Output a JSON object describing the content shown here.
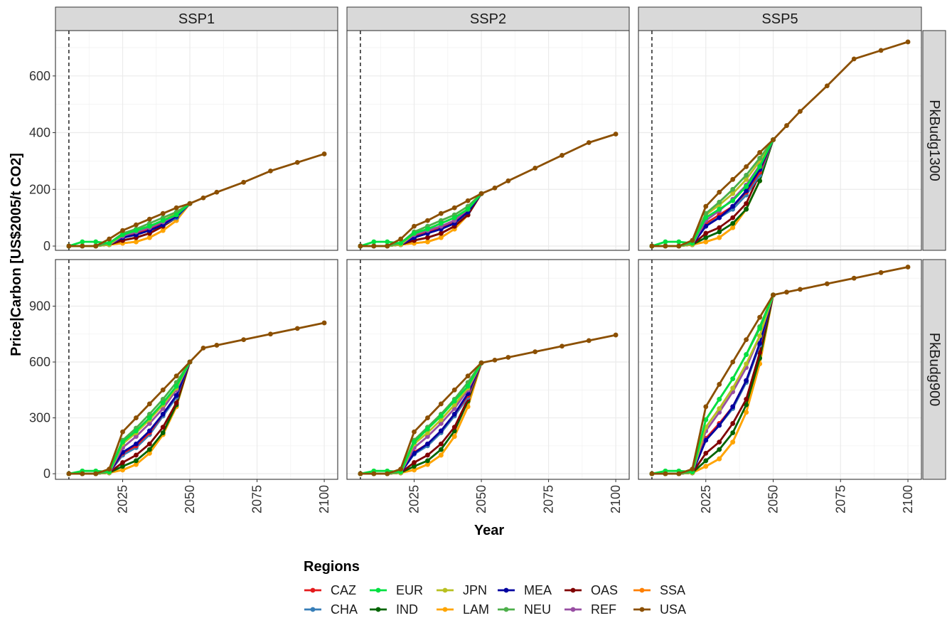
{
  "chart_data": {
    "type": "line",
    "facet_rows": [
      "PkBudg1300",
      "PkBudg900"
    ],
    "facet_cols": [
      "SSP1",
      "SSP2",
      "SSP5"
    ],
    "xlabel": "Year",
    "ylabel": "Price|Carbon [US$2005/t CO2]",
    "xlim": [
      2000,
      2105
    ],
    "x_ticks": [
      2025,
      2050,
      2075,
      2100
    ],
    "y_ticks": {
      "PkBudg1300": [
        0,
        200,
        400,
        600
      ],
      "PkBudg900": [
        0,
        300,
        600,
        900
      ]
    },
    "ylim": {
      "PkBudg1300": [
        -15,
        760
      ],
      "PkBudg900": [
        -30,
        1150
      ]
    },
    "vline_x": 2005,
    "legend": {
      "title": "Regions",
      "position": "bottom",
      "items": [
        {
          "name": "CAZ",
          "color": "#e41a1c"
        },
        {
          "name": "CHA",
          "color": "#377eb8"
        },
        {
          "name": "EUR",
          "color": "#00e040"
        },
        {
          "name": "IND",
          "color": "#006400"
        },
        {
          "name": "JPN",
          "color": "#b8c020"
        },
        {
          "name": "LAM",
          "color": "#ffa500"
        },
        {
          "name": "MEA",
          "color": "#0000a0"
        },
        {
          "name": "NEU",
          "color": "#4daf4a"
        },
        {
          "name": "OAS",
          "color": "#800000"
        },
        {
          "name": "REF",
          "color": "#984ea3"
        },
        {
          "name": "SSA",
          "color": "#ff7f00"
        },
        {
          "name": "USA",
          "color": "#8b4f00"
        }
      ]
    },
    "x_years": [
      2005,
      2010,
      2015,
      2020,
      2025,
      2030,
      2035,
      2040,
      2045,
      2050
    ],
    "x_long": [
      2050,
      2055,
      2060,
      2070,
      2080,
      2090,
      2100
    ],
    "panels": [
      {
        "row": "PkBudg1300",
        "col": "SSP1",
        "shared_tail": [
          150,
          170,
          190,
          225,
          265,
          295,
          325
        ],
        "series": {
          "CAZ": [
            0,
            0,
            0,
            5,
            30,
            45,
            60,
            80,
            110,
            150
          ],
          "CHA": [
            0,
            0,
            0,
            5,
            30,
            40,
            55,
            75,
            100,
            150
          ],
          "EUR": [
            0,
            15,
            15,
            10,
            40,
            55,
            70,
            90,
            110,
            150
          ],
          "IND": [
            0,
            0,
            0,
            5,
            20,
            30,
            45,
            70,
            100,
            150
          ],
          "JPN": [
            0,
            0,
            0,
            5,
            40,
            55,
            70,
            90,
            115,
            150
          ],
          "LAM": [
            0,
            0,
            0,
            5,
            10,
            15,
            30,
            55,
            90,
            150
          ],
          "MEA": [
            0,
            0,
            0,
            5,
            30,
            40,
            55,
            75,
            105,
            150
          ],
          "NEU": [
            0,
            0,
            0,
            10,
            45,
            60,
            80,
            100,
            120,
            150
          ],
          "OAS": [
            0,
            0,
            0,
            5,
            20,
            30,
            45,
            70,
            100,
            150
          ],
          "REF": [
            0,
            0,
            0,
            5,
            35,
            50,
            65,
            85,
            110,
            150
          ],
          "SSA": [
            0,
            0,
            0,
            5,
            10,
            15,
            30,
            55,
            90,
            150
          ],
          "USA": [
            0,
            0,
            0,
            25,
            55,
            75,
            95,
            115,
            135,
            150
          ]
        }
      },
      {
        "row": "PkBudg1300",
        "col": "SSP2",
        "shared_tail": [
          185,
          205,
          230,
          275,
          320,
          365,
          395
        ],
        "series": {
          "CAZ": [
            0,
            0,
            0,
            5,
            35,
            50,
            65,
            85,
            125,
            185
          ],
          "CHA": [
            0,
            0,
            0,
            5,
            30,
            45,
            60,
            80,
            120,
            185
          ],
          "EUR": [
            0,
            15,
            15,
            10,
            45,
            60,
            80,
            100,
            130,
            185
          ],
          "IND": [
            0,
            0,
            0,
            5,
            20,
            30,
            45,
            70,
            110,
            185
          ],
          "JPN": [
            0,
            0,
            0,
            5,
            45,
            60,
            80,
            100,
            130,
            185
          ],
          "LAM": [
            0,
            0,
            0,
            5,
            10,
            15,
            30,
            60,
            110,
            185
          ],
          "MEA": [
            0,
            0,
            0,
            5,
            30,
            45,
            60,
            80,
            120,
            185
          ],
          "NEU": [
            0,
            0,
            0,
            10,
            50,
            70,
            90,
            110,
            140,
            185
          ],
          "OAS": [
            0,
            0,
            0,
            5,
            20,
            30,
            45,
            70,
            110,
            185
          ],
          "REF": [
            0,
            0,
            0,
            5,
            40,
            55,
            70,
            90,
            130,
            185
          ],
          "SSA": [
            0,
            0,
            0,
            5,
            10,
            15,
            30,
            60,
            110,
            185
          ],
          "USA": [
            0,
            0,
            0,
            25,
            70,
            90,
            115,
            135,
            160,
            185
          ]
        }
      },
      {
        "row": "PkBudg1300",
        "col": "SSP5",
        "shared_tail": [
          375,
          425,
          475,
          565,
          660,
          690,
          720
        ],
        "series": {
          "CAZ": [
            0,
            0,
            0,
            5,
            80,
            110,
            140,
            190,
            260,
            375
          ],
          "CHA": [
            0,
            0,
            0,
            5,
            75,
            100,
            130,
            180,
            250,
            375
          ],
          "EUR": [
            0,
            15,
            15,
            10,
            100,
            130,
            160,
            210,
            280,
            375
          ],
          "IND": [
            0,
            0,
            0,
            5,
            30,
            50,
            80,
            130,
            230,
            375
          ],
          "JPN": [
            0,
            0,
            0,
            5,
            110,
            145,
            185,
            235,
            300,
            375
          ],
          "LAM": [
            0,
            0,
            0,
            5,
            15,
            30,
            65,
            130,
            230,
            375
          ],
          "MEA": [
            0,
            0,
            0,
            5,
            70,
            100,
            140,
            195,
            270,
            375
          ],
          "NEU": [
            0,
            0,
            0,
            10,
            115,
            155,
            200,
            250,
            310,
            375
          ],
          "OAS": [
            0,
            0,
            0,
            5,
            45,
            65,
            100,
            150,
            255,
            375
          ],
          "REF": [
            0,
            0,
            0,
            5,
            90,
            125,
            165,
            215,
            285,
            375
          ],
          "SSA": [
            0,
            0,
            0,
            5,
            15,
            30,
            65,
            130,
            230,
            375
          ],
          "USA": [
            0,
            0,
            0,
            20,
            140,
            190,
            235,
            280,
            330,
            375
          ]
        }
      },
      {
        "row": "PkBudg900",
        "col": "SSP1",
        "shared_tail": [
          600,
          675,
          690,
          720,
          750,
          780,
          810
        ],
        "series": {
          "CAZ": [
            0,
            0,
            0,
            5,
            110,
            150,
            220,
            320,
            420,
            600
          ],
          "CHA": [
            0,
            0,
            0,
            5,
            100,
            140,
            210,
            310,
            410,
            600
          ],
          "EUR": [
            0,
            15,
            15,
            10,
            170,
            230,
            300,
            380,
            470,
            600
          ],
          "IND": [
            0,
            0,
            0,
            5,
            40,
            70,
            130,
            220,
            370,
            600
          ],
          "JPN": [
            0,
            0,
            0,
            5,
            160,
            220,
            290,
            370,
            460,
            600
          ],
          "LAM": [
            0,
            0,
            0,
            5,
            20,
            50,
            110,
            210,
            360,
            600
          ],
          "MEA": [
            0,
            0,
            0,
            5,
            115,
            160,
            230,
            320,
            420,
            600
          ],
          "NEU": [
            0,
            0,
            0,
            10,
            180,
            245,
            320,
            400,
            490,
            600
          ],
          "OAS": [
            0,
            0,
            0,
            5,
            60,
            100,
            160,
            250,
            380,
            600
          ],
          "REF": [
            0,
            0,
            0,
            5,
            140,
            200,
            270,
            350,
            450,
            600
          ],
          "SSA": [
            0,
            0,
            0,
            5,
            20,
            50,
            110,
            210,
            360,
            600
          ],
          "USA": [
            0,
            0,
            0,
            25,
            225,
            300,
            375,
            450,
            525,
            600
          ]
        }
      },
      {
        "row": "PkBudg900",
        "col": "SSP2",
        "shared_tail": [
          595,
          610,
          625,
          655,
          685,
          715,
          745
        ],
        "series": {
          "CAZ": [
            0,
            0,
            0,
            5,
            115,
            160,
            230,
            320,
            420,
            595
          ],
          "CHA": [
            0,
            0,
            0,
            5,
            105,
            150,
            220,
            310,
            410,
            595
          ],
          "EUR": [
            0,
            15,
            15,
            10,
            170,
            240,
            310,
            390,
            470,
            595
          ],
          "IND": [
            0,
            0,
            0,
            5,
            40,
            70,
            130,
            230,
            390,
            595
          ],
          "JPN": [
            0,
            0,
            0,
            5,
            160,
            220,
            290,
            370,
            460,
            595
          ],
          "LAM": [
            0,
            0,
            0,
            5,
            20,
            50,
            100,
            200,
            360,
            595
          ],
          "MEA": [
            0,
            0,
            0,
            5,
            110,
            160,
            230,
            320,
            430,
            595
          ],
          "NEU": [
            0,
            0,
            0,
            10,
            180,
            250,
            320,
            400,
            490,
            595
          ],
          "OAS": [
            0,
            0,
            0,
            5,
            60,
            100,
            160,
            250,
            400,
            595
          ],
          "REF": [
            0,
            0,
            0,
            5,
            140,
            200,
            270,
            350,
            450,
            595
          ],
          "SSA": [
            0,
            0,
            0,
            5,
            20,
            50,
            100,
            200,
            360,
            595
          ],
          "USA": [
            0,
            0,
            0,
            25,
            225,
            300,
            375,
            450,
            525,
            595
          ]
        }
      },
      {
        "row": "PkBudg900",
        "col": "SSP5",
        "shared_tail": [
          960,
          975,
          990,
          1020,
          1050,
          1080,
          1110
        ],
        "series": {
          "CAZ": [
            0,
            0,
            0,
            5,
            190,
            270,
            360,
            500,
            700,
            960
          ],
          "CHA": [
            0,
            0,
            0,
            5,
            180,
            260,
            350,
            490,
            690,
            960
          ],
          "EUR": [
            0,
            15,
            15,
            10,
            290,
            400,
            510,
            640,
            780,
            960
          ],
          "IND": [
            0,
            0,
            0,
            5,
            70,
            130,
            220,
            370,
            620,
            960
          ],
          "JPN": [
            0,
            0,
            0,
            5,
            250,
            350,
            460,
            590,
            740,
            960
          ],
          "LAM": [
            0,
            0,
            0,
            5,
            40,
            80,
            170,
            330,
            590,
            960
          ],
          "MEA": [
            0,
            0,
            0,
            5,
            180,
            260,
            360,
            500,
            700,
            960
          ],
          "NEU": [
            0,
            0,
            0,
            10,
            290,
            400,
            510,
            640,
            790,
            960
          ],
          "OAS": [
            0,
            0,
            0,
            5,
            110,
            170,
            270,
            400,
            650,
            960
          ],
          "REF": [
            0,
            0,
            0,
            5,
            230,
            330,
            440,
            570,
            740,
            960
          ],
          "SSA": [
            0,
            0,
            0,
            5,
            40,
            80,
            170,
            330,
            590,
            960
          ],
          "USA": [
            0,
            0,
            0,
            25,
            360,
            480,
            600,
            720,
            840,
            960
          ]
        }
      }
    ]
  }
}
